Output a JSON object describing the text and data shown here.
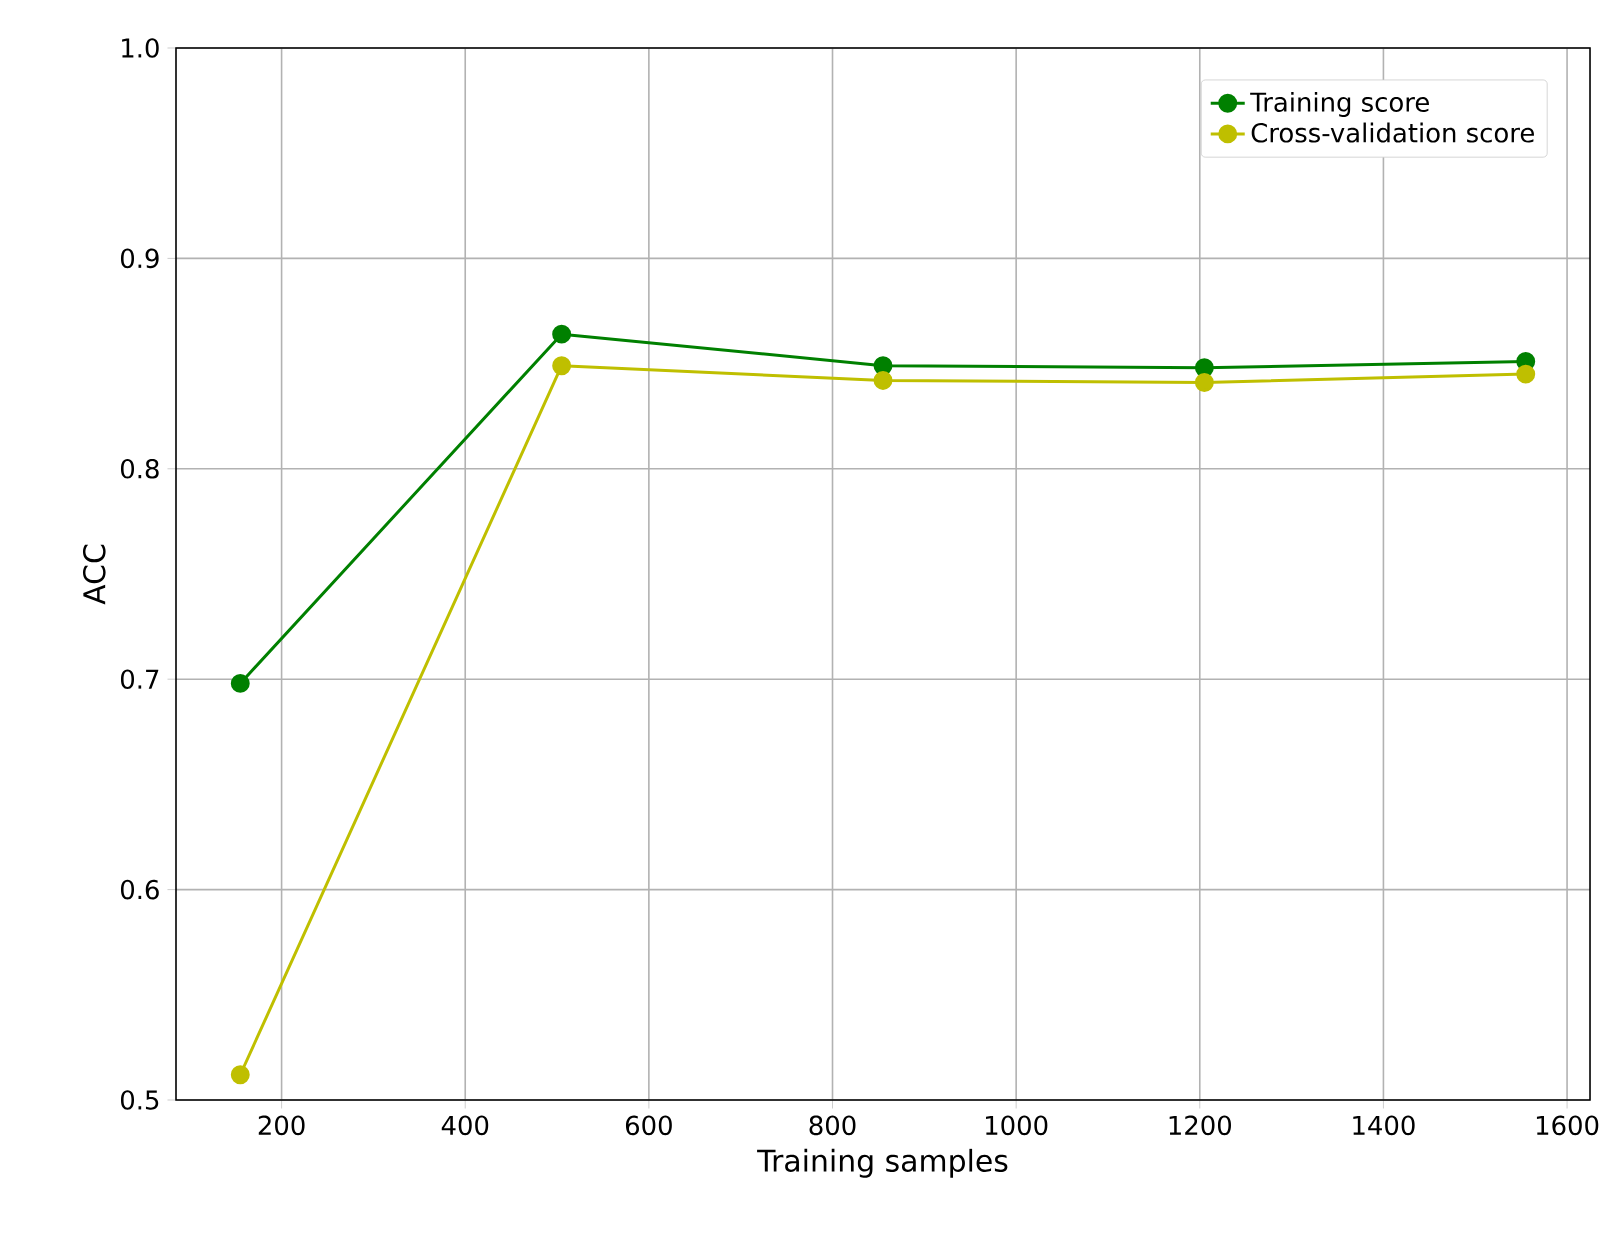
{
  "chart_data": {
    "type": "line",
    "xlabel": "Training samples",
    "ylabel": "ACC",
    "x": [
      155,
      505,
      855,
      1205,
      1555
    ],
    "series": [
      {
        "name": "Training score",
        "color": "#008000",
        "values": [
          0.698,
          0.864,
          0.849,
          0.848,
          0.851
        ]
      },
      {
        "name": "Cross-validation score",
        "color": "#bfbf00",
        "values": [
          0.512,
          0.849,
          0.842,
          0.841,
          0.845
        ]
      }
    ],
    "xlim": [
      85,
      1625
    ],
    "ylim": [
      0.5,
      1.0
    ],
    "xticks": [
      200,
      400,
      600,
      800,
      1000,
      1200,
      1400,
      1600
    ],
    "yticks": [
      {
        "value": 0.5,
        "label": "0.5"
      },
      {
        "value": 0.6,
        "label": "0.6"
      },
      {
        "value": 0.7,
        "label": "0.7"
      },
      {
        "value": 0.8,
        "label": "0.8"
      },
      {
        "value": 0.9,
        "label": "0.9"
      },
      {
        "value": 1.0,
        "label": "1.0"
      }
    ],
    "grid": true,
    "legend": "top right",
    "marker": "circle",
    "line_style": "solid"
  }
}
